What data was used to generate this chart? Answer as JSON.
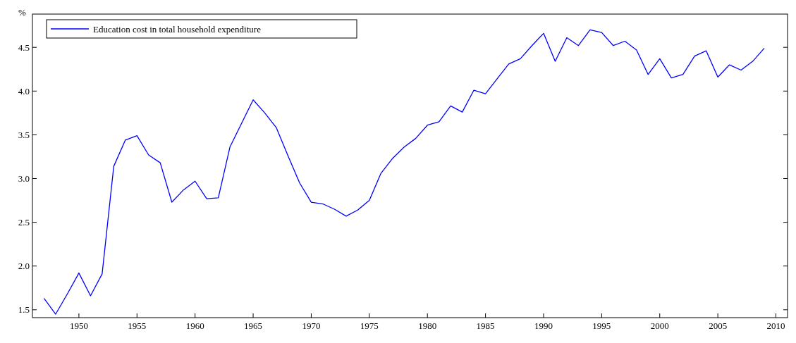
{
  "chart_data": {
    "type": "line",
    "ylabel": "%",
    "x": [
      1947,
      1948,
      1949,
      1950,
      1951,
      1952,
      1953,
      1954,
      1955,
      1956,
      1957,
      1958,
      1959,
      1960,
      1961,
      1962,
      1963,
      1964,
      1965,
      1966,
      1967,
      1968,
      1969,
      1970,
      1971,
      1972,
      1973,
      1974,
      1975,
      1976,
      1977,
      1978,
      1979,
      1980,
      1981,
      1982,
      1983,
      1984,
      1985,
      1986,
      1987,
      1988,
      1989,
      1990,
      1991,
      1992,
      1993,
      1994,
      1995,
      1996,
      1997,
      1998,
      1999,
      2000,
      2001,
      2002,
      2003,
      2004,
      2005,
      2006,
      2007,
      2008,
      2009
    ],
    "series": [
      {
        "name": "Education cost in total household expenditure",
        "color": "#0000ff",
        "values": [
          1.63,
          1.45,
          1.68,
          1.92,
          1.66,
          1.91,
          3.14,
          3.44,
          3.49,
          3.27,
          3.18,
          2.73,
          2.87,
          2.97,
          2.77,
          2.78,
          3.36,
          3.63,
          3.9,
          3.75,
          3.58,
          3.26,
          2.95,
          2.73,
          2.71,
          2.65,
          2.57,
          2.64,
          2.75,
          3.06,
          3.23,
          3.36,
          3.46,
          3.61,
          3.65,
          3.83,
          3.76,
          4.01,
          3.97,
          4.14,
          4.31,
          4.37,
          4.52,
          4.66,
          4.34,
          4.61,
          4.52,
          4.7,
          4.67,
          4.52,
          4.57,
          4.47,
          4.19,
          4.37,
          4.15,
          4.19,
          4.4,
          4.46,
          4.16,
          4.3,
          4.24,
          4.34,
          4.49
        ]
      }
    ],
    "xlim": [
      1946,
      2011
    ],
    "ylim": [
      1.41,
      4.88
    ],
    "xticks": [
      1950,
      1955,
      1960,
      1965,
      1970,
      1975,
      1980,
      1985,
      1990,
      1995,
      2000,
      2005,
      2010
    ],
    "yticks": [
      1.5,
      {
        "value": 2,
        "label": "2.0"
      },
      2.5,
      {
        "value": 3,
        "label": "3.0"
      },
      3.5,
      {
        "value": 4,
        "label": "4.0"
      },
      4.5
    ],
    "grid": false,
    "legend": "top left",
    "line_style": "solid",
    "marker": "none"
  }
}
